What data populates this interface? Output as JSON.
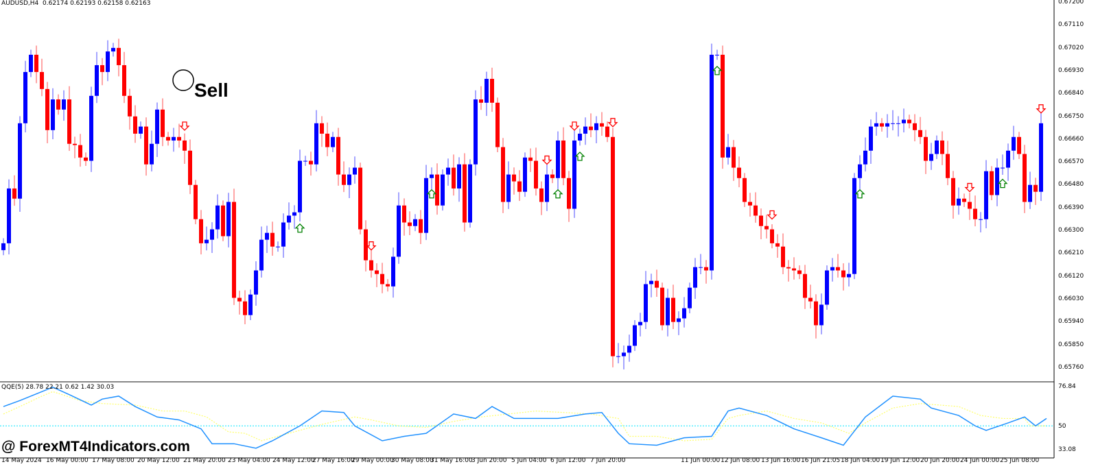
{
  "header": {
    "symbol": "AUDUSD,H4",
    "ohlc": "0.62174 0.62193 0.62158 0.62163"
  },
  "indicator_header": "QQE(5) 28.78 22.21 0.62 1.42 30.03",
  "watermark": "@ ForexMT4Indicators.com",
  "annotation": {
    "text": "Sell"
  },
  "colors": {
    "bull": "#0000ff",
    "bear": "#ff0000",
    "qqe_line": "#1e90ff",
    "qqe_signal": "#ffff66",
    "level": "#00e5ff",
    "buy_arrow": "#008000",
    "sell_arrow": "#ff0000"
  },
  "price_axis": [
    "0.67200",
    "0.67110",
    "0.67020",
    "0.66930",
    "0.66840",
    "0.66750",
    "0.66660",
    "0.66570",
    "0.66480",
    "0.66390",
    "0.66300",
    "0.66210",
    "0.66120",
    "0.66030",
    "0.65940",
    "0.65850",
    "0.65760"
  ],
  "indicator_axis": [
    "76.84",
    "50",
    "33.08"
  ],
  "time_axis": [
    "14 May 2024",
    "16 May 00:00",
    "17 May 08:00",
    "20 May 12:00",
    "21 May 20:00",
    "23 May 04:00",
    "24 May 12:00",
    "27 May 16:00",
    "29 May 00:00",
    "30 May 08:00",
    "31 May 16:00",
    "3 Jun 20:00",
    "5 Jun 04:00",
    "6 Jun 12:00",
    "7 Jun 20:00",
    "11 Jun 00:00",
    "12 Jun 08:00",
    "13 Jun 16:00",
    "16 Jun 21:05",
    "18 Jun 04:00",
    "19 Jun 12:00",
    "20 Jun 20:00",
    "24 Jun 00:00",
    "25 Jun 08:00"
  ],
  "chart_data": {
    "type": "candlestick",
    "title": "AUDUSD,H4",
    "ylim": [
      0.6576,
      0.672
    ],
    "closes": [
      0.66252,
      0.66468,
      0.66428,
      0.66725,
      0.66927,
      0.66995,
      0.66927,
      0.6686,
      0.66698,
      0.66819,
      0.66779,
      0.66819,
      0.66644,
      0.66639,
      0.6659,
      0.66577,
      0.66833,
      0.66954,
      0.66927,
      0.67008,
      0.67022,
      0.66954,
      0.66833,
      0.66752,
      0.66684,
      0.66712,
      0.66563,
      0.66644,
      0.66779,
      0.66671,
      0.66657,
      0.66671,
      0.66657,
      0.66617,
      0.66482,
      0.66347,
      0.66252,
      0.66266,
      0.66307,
      0.66401,
      0.6628,
      0.66415,
      0.66037,
      0.66023,
      0.65969,
      0.6605,
      0.66145,
      0.66266,
      0.66293,
      0.66239,
      0.66239,
      0.66334,
      0.66361,
      0.66374,
      0.66577,
      0.66577,
      0.66563,
      0.66725,
      0.66684,
      0.66631,
      0.66671,
      0.66523,
      0.66482,
      0.66523,
      0.6655,
      0.66307,
      0.66185,
      0.66145,
      0.66131,
      0.66091,
      0.66082,
      0.66199,
      0.66401,
      0.66334,
      0.6632,
      0.66347,
      0.66293,
      0.66509,
      0.66523,
      0.66401,
      0.66523,
      0.6655,
      0.66468,
      0.66563,
      0.66334,
      0.66563,
      0.66819,
      0.66806,
      0.669,
      0.66806,
      0.66631,
      0.66415,
      0.66523,
      0.66496,
      0.66455,
      0.6659,
      0.66577,
      0.66468,
      0.66415,
      0.66523,
      0.66509,
      0.66657,
      0.66509,
      0.66388,
      0.66657,
      0.66684,
      0.66712,
      0.66698,
      0.66725,
      0.66712,
      0.66671,
      0.65807,
      0.65807,
      0.65821,
      0.65848,
      0.65929,
      0.65942,
      0.66091,
      0.66104,
      0.66077,
      0.65929,
      0.66037,
      0.65942,
      0.65956,
      0.65996,
      0.66077,
      0.66158,
      0.66158,
      0.66145,
      0.66995,
      0.66995,
      0.6659,
      0.66631,
      0.6655,
      0.66509,
      0.66415,
      0.66401,
      0.66361,
      0.6632,
      0.66307,
      0.66252,
      0.66239,
      0.66158,
      0.66153,
      0.66145,
      0.66131,
      0.66037,
      0.66023,
      0.65929,
      0.6601,
      0.66145,
      0.66158,
      0.66145,
      0.66118,
      0.66131,
      0.66509,
      0.66563,
      0.66617,
      0.66712,
      0.66725,
      0.66712,
      0.66725,
      0.66725,
      0.66725,
      0.66739,
      0.66725,
      0.66698,
      0.66671,
      0.66577,
      0.66604,
      0.66657,
      0.66604,
      0.66509,
      0.66401,
      0.66428,
      0.66415,
      0.66388,
      0.66347,
      0.66347,
      0.66536,
      0.66442,
      0.6655,
      0.6655,
      0.66617,
      0.66671,
      0.66604,
      0.66415,
      0.66482,
      0.66455,
      0.66725
    ],
    "sell_signals": [
      33,
      67,
      99,
      104,
      111,
      140,
      176,
      189
    ],
    "buy_signals": [
      54,
      78,
      101,
      105,
      130,
      156,
      182,
      190
    ],
    "indicator": {
      "name": "QQE(5)",
      "ylim": [
        33.08,
        76.84
      ],
      "level": 50,
      "line": [
        [
          0,
          63
        ],
        [
          3,
          67
        ],
        [
          7,
          73
        ],
        [
          9,
          76
        ],
        [
          12,
          71
        ],
        [
          16,
          64
        ],
        [
          18,
          68
        ],
        [
          21,
          70
        ],
        [
          24,
          63
        ],
        [
          28,
          56
        ],
        [
          32,
          54
        ],
        [
          36,
          48
        ],
        [
          38,
          38
        ],
        [
          42,
          38
        ],
        [
          46,
          35
        ],
        [
          49,
          40
        ],
        [
          54,
          50
        ],
        [
          58,
          60
        ],
        [
          62,
          59
        ],
        [
          64,
          50
        ],
        [
          69,
          40
        ],
        [
          73,
          43
        ],
        [
          77,
          45
        ],
        [
          82,
          58
        ],
        [
          86,
          55
        ],
        [
          89,
          63
        ],
        [
          93,
          55
        ],
        [
          97,
          55
        ],
        [
          101,
          55
        ],
        [
          106,
          58
        ],
        [
          109,
          59
        ],
        [
          112,
          45
        ],
        [
          114,
          38
        ],
        [
          119,
          37
        ],
        [
          124,
          42
        ],
        [
          129,
          43
        ],
        [
          132,
          60
        ],
        [
          134,
          62
        ],
        [
          139,
          57
        ],
        [
          144,
          48
        ],
        [
          149,
          42
        ],
        [
          153,
          37
        ],
        [
          157,
          56
        ],
        [
          162,
          70
        ],
        [
          167,
          68
        ],
        [
          169,
          62
        ],
        [
          174,
          57
        ],
        [
          177,
          50
        ],
        [
          179,
          47
        ],
        [
          183,
          52
        ],
        [
          186,
          56
        ],
        [
          188,
          50
        ],
        [
          190,
          55
        ]
      ],
      "signal": [
        [
          0,
          58
        ],
        [
          3,
          63
        ],
        [
          7,
          70
        ],
        [
          9,
          73
        ],
        [
          14,
          67
        ],
        [
          18,
          65
        ],
        [
          24,
          64
        ],
        [
          29,
          60
        ],
        [
          33,
          60
        ],
        [
          37,
          56
        ],
        [
          41,
          46
        ],
        [
          44,
          45
        ],
        [
          47,
          40
        ],
        [
          52,
          45
        ],
        [
          58,
          51
        ],
        [
          64,
          56
        ],
        [
          67,
          54
        ],
        [
          72,
          50
        ],
        [
          77,
          49
        ],
        [
          82,
          53
        ],
        [
          87,
          56
        ],
        [
          92,
          58
        ],
        [
          97,
          60
        ],
        [
          102,
          59
        ],
        [
          107,
          58
        ],
        [
          112,
          55
        ],
        [
          114,
          43
        ],
        [
          119,
          43
        ],
        [
          124,
          40
        ],
        [
          129,
          41
        ],
        [
          132,
          55
        ],
        [
          134,
          57
        ],
        [
          139,
          60
        ],
        [
          144,
          55
        ],
        [
          149,
          52
        ],
        [
          154,
          45
        ],
        [
          157,
          52
        ],
        [
          162,
          62
        ],
        [
          167,
          65
        ],
        [
          174,
          63
        ],
        [
          178,
          57
        ],
        [
          182,
          55
        ],
        [
          186,
          55
        ],
        [
          187,
          50
        ],
        [
          190,
          50
        ]
      ]
    }
  }
}
